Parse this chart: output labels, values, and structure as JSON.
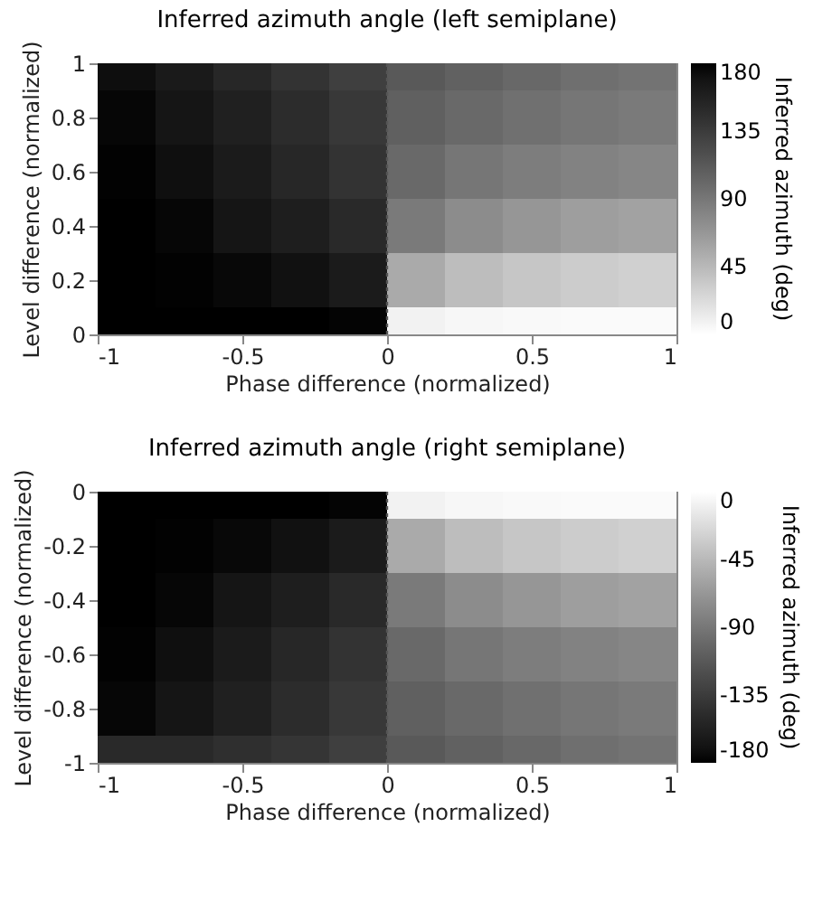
{
  "chart_data": [
    {
      "type": "heatmap",
      "title": "Inferred azimuth angle (left semiplane)",
      "xlabel": "Phase difference (normalized)",
      "ylabel": "Level difference (normalized)",
      "clabel": "Inferred azimuth (deg)",
      "x": [
        -0.9,
        -0.7,
        -0.5,
        -0.3,
        -0.1,
        0.1,
        0.3,
        0.5,
        0.7,
        0.9
      ],
      "y_categories": [
        1,
        0.8,
        0.6,
        0.4,
        0.2,
        0
      ],
      "cells": [
        [
          173,
          163,
          152,
          142,
          132,
          112,
          106,
          101,
          96,
          93
        ],
        [
          177,
          168,
          158,
          148,
          138,
          107,
          100,
          95,
          91,
          88
        ],
        [
          179,
          172,
          162,
          152,
          142,
          100,
          91,
          86,
          82,
          79
        ],
        [
          180,
          177,
          168,
          160,
          150,
          88,
          75,
          68,
          63,
          60
        ],
        [
          180,
          179,
          176,
          171,
          162,
          55,
          42,
          36,
          32,
          30
        ],
        [
          180,
          180,
          180,
          180,
          178,
          8,
          5,
          4,
          3,
          3
        ]
      ],
      "xlim": [
        -1,
        1
      ],
      "xticks": [
        -1,
        -0.5,
        0,
        0.5,
        1
      ],
      "clim": [
        0,
        180
      ],
      "cticks": [
        0,
        45,
        90,
        135,
        180
      ],
      "colors": [
        "#ffffff",
        "#000000"
      ],
      "ref_lines": [
        {
          "axis": "x",
          "value": 0,
          "color": "#555555",
          "line_style": "dotted"
        }
      ]
    },
    {
      "type": "heatmap",
      "title": "Inferred azimuth angle (right semiplane)",
      "xlabel": "Phase difference (normalized)",
      "ylabel": "Level difference (normalized)",
      "clabel": "Inferred azimuth (deg)",
      "x": [
        -0.9,
        -0.7,
        -0.5,
        -0.3,
        -0.1,
        0.1,
        0.3,
        0.5,
        0.7,
        0.9
      ],
      "y_categories": [
        0,
        -0.2,
        -0.4,
        -0.6,
        -0.8,
        -1
      ],
      "cells": [
        [
          -180,
          -180,
          -180,
          -180,
          -178,
          -8,
          -5,
          -4,
          -3,
          -3
        ],
        [
          -180,
          -179,
          -176,
          -171,
          -162,
          -55,
          -42,
          -36,
          -32,
          -30
        ],
        [
          -180,
          -177,
          -168,
          -160,
          -150,
          -88,
          -75,
          -68,
          -63,
          -60
        ],
        [
          -179,
          -172,
          -162,
          -152,
          -142,
          -100,
          -91,
          -86,
          -82,
          -79
        ],
        [
          -177,
          -168,
          -158,
          -148,
          -138,
          -107,
          -100,
          -95,
          -91,
          -88
        ],
        [
          -150,
          -150,
          -145,
          -140,
          -132,
          -112,
          -106,
          -101,
          -96,
          -93
        ]
      ],
      "xlim": [
        -1,
        1
      ],
      "xticks": [
        -1,
        -0.5,
        0,
        0.5,
        1
      ],
      "clim": [
        -180,
        0
      ],
      "cticks": [
        -180,
        -135,
        -90,
        -45,
        0
      ],
      "colors": [
        "#000000",
        "#ffffff"
      ],
      "ref_lines": [
        {
          "axis": "x",
          "value": 0,
          "color": "#555555",
          "line_style": "dotted"
        }
      ]
    }
  ]
}
